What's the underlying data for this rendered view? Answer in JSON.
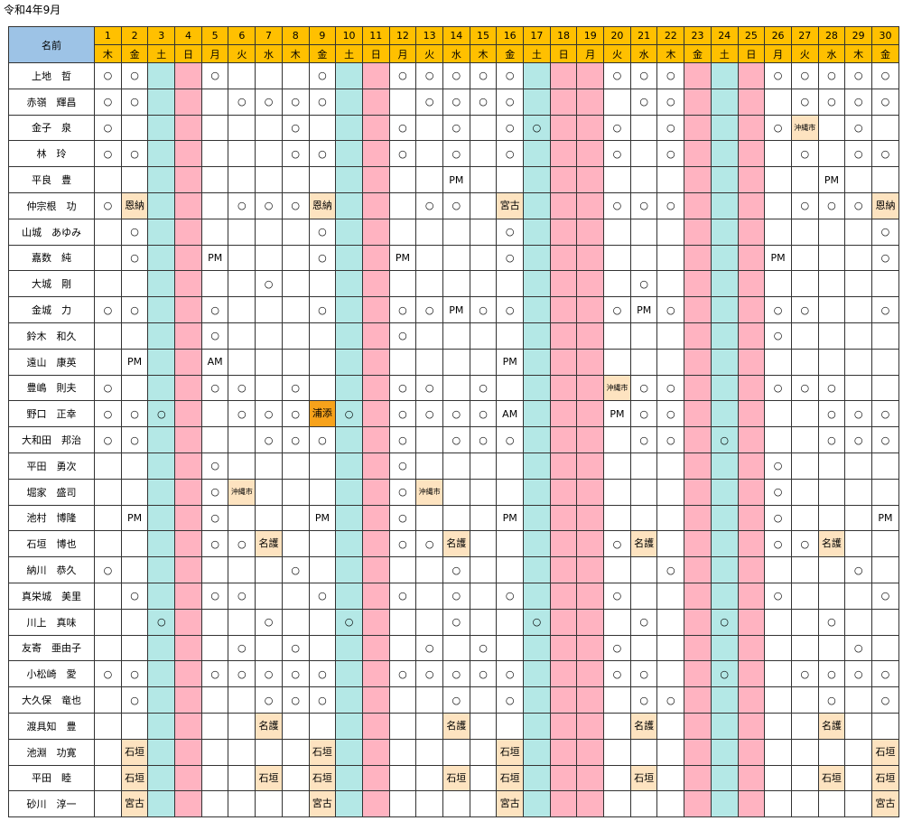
{
  "title": "令和4年9月",
  "header_name": "名前",
  "days": [
    {
      "n": "1",
      "w": "木",
      "t": "w"
    },
    {
      "n": "2",
      "w": "金",
      "t": "w"
    },
    {
      "n": "3",
      "w": "土",
      "t": "sat"
    },
    {
      "n": "4",
      "w": "日",
      "t": "hol"
    },
    {
      "n": "5",
      "w": "月",
      "t": "w"
    },
    {
      "n": "6",
      "w": "火",
      "t": "w"
    },
    {
      "n": "7",
      "w": "水",
      "t": "w"
    },
    {
      "n": "8",
      "w": "木",
      "t": "w"
    },
    {
      "n": "9",
      "w": "金",
      "t": "w"
    },
    {
      "n": "10",
      "w": "土",
      "t": "sat"
    },
    {
      "n": "11",
      "w": "日",
      "t": "hol"
    },
    {
      "n": "12",
      "w": "月",
      "t": "w"
    },
    {
      "n": "13",
      "w": "火",
      "t": "w"
    },
    {
      "n": "14",
      "w": "水",
      "t": "w"
    },
    {
      "n": "15",
      "w": "木",
      "t": "w"
    },
    {
      "n": "16",
      "w": "金",
      "t": "w"
    },
    {
      "n": "17",
      "w": "土",
      "t": "sat"
    },
    {
      "n": "18",
      "w": "日",
      "t": "hol"
    },
    {
      "n": "19",
      "w": "月",
      "t": "hol"
    },
    {
      "n": "20",
      "w": "火",
      "t": "w"
    },
    {
      "n": "21",
      "w": "水",
      "t": "w"
    },
    {
      "n": "22",
      "w": "木",
      "t": "w"
    },
    {
      "n": "23",
      "w": "金",
      "t": "hol"
    },
    {
      "n": "24",
      "w": "土",
      "t": "sat"
    },
    {
      "n": "25",
      "w": "日",
      "t": "hol"
    },
    {
      "n": "26",
      "w": "月",
      "t": "w"
    },
    {
      "n": "27",
      "w": "火",
      "t": "w"
    },
    {
      "n": "28",
      "w": "水",
      "t": "w"
    },
    {
      "n": "29",
      "w": "木",
      "t": "w"
    },
    {
      "n": "30",
      "w": "金",
      "t": "w"
    }
  ],
  "rows": [
    {
      "name": "上地　哲",
      "cells": [
        "○",
        "○",
        "",
        "",
        "○",
        "",
        "",
        "",
        "○",
        "",
        "",
        "○",
        "○",
        "○",
        "○",
        "○",
        "",
        "",
        "",
        "○",
        "○",
        "○",
        "",
        "",
        "",
        "○",
        "○",
        "○",
        "○",
        "○"
      ]
    },
    {
      "name": "赤嶺　輝昌",
      "cells": [
        "○",
        "○",
        "",
        "",
        "",
        "○",
        "○",
        "○",
        "○",
        "",
        "",
        "",
        "○",
        "○",
        "○",
        "○",
        "",
        "",
        "",
        "",
        "○",
        "○",
        "",
        "",
        "",
        "",
        "○",
        "○",
        "○",
        "○"
      ]
    },
    {
      "name": "金子　泉",
      "cells": [
        "○",
        "",
        "",
        "",
        "",
        "",
        "",
        "○",
        "",
        "",
        "",
        "○",
        "",
        "○",
        "",
        "○",
        "○",
        "",
        "",
        "○",
        "",
        "○",
        "",
        "",
        "",
        "○",
        "#沖縄市",
        "",
        "○",
        ""
      ]
    },
    {
      "name": "林　玲",
      "cells": [
        "○",
        "○",
        "",
        "",
        "",
        "",
        "",
        "○",
        "○",
        "",
        "",
        "○",
        "",
        "○",
        "",
        "○",
        "",
        "",
        "",
        "○",
        "",
        "○",
        "",
        "",
        "",
        "",
        "○",
        "",
        "○",
        "○"
      ]
    },
    {
      "name": "平良　豊",
      "cells": [
        "",
        "",
        "",
        "",
        "",
        "",
        "",
        "",
        "",
        "",
        "",
        "",
        "",
        "PM",
        "",
        "",
        "",
        "",
        "",
        "",
        "",
        "",
        "",
        "",
        "",
        "",
        "",
        "PM",
        "",
        ""
      ]
    },
    {
      "name": "仲宗根　功",
      "cells": [
        "○",
        "=恩納",
        "",
        "",
        "",
        "○",
        "○",
        "○",
        "=恩納",
        "",
        "",
        "",
        "○",
        "○",
        "",
        "=宮古",
        "",
        "",
        "",
        "○",
        "○",
        "○",
        "",
        "",
        "",
        "",
        "○",
        "○",
        "○",
        "=恩納"
      ]
    },
    {
      "name": "山城　あゆみ",
      "cells": [
        "",
        "○",
        "",
        "",
        "",
        "",
        "",
        "",
        "○",
        "",
        "",
        "",
        "",
        "",
        "",
        "○",
        "",
        "",
        "",
        "",
        "",
        "",
        "",
        "",
        "",
        "",
        "",
        "",
        "",
        "○"
      ]
    },
    {
      "name": "嘉数　純",
      "cells": [
        "",
        "○",
        "",
        "",
        "PM",
        "",
        "",
        "",
        "○",
        "",
        "",
        "PM",
        "",
        "",
        "",
        "○",
        "",
        "",
        "",
        "",
        "",
        "",
        "",
        "",
        "",
        "PM",
        "",
        "",
        "",
        "○"
      ]
    },
    {
      "name": "大城　剛",
      "cells": [
        "",
        "",
        "",
        "",
        "",
        "",
        "○",
        "",
        "",
        "",
        "",
        "",
        "",
        "",
        "",
        "",
        "",
        "",
        "",
        "",
        "○",
        "",
        "",
        "",
        "",
        "",
        "",
        "",
        "",
        ""
      ]
    },
    {
      "name": "金城　力",
      "cells": [
        "○",
        "○",
        "",
        "",
        "○",
        "",
        "",
        "",
        "○",
        "",
        "",
        "○",
        "○",
        "PM",
        "○",
        "○",
        "",
        "",
        "",
        "○",
        "PM",
        "○",
        "",
        "",
        "",
        "○",
        "○",
        "",
        "",
        "○"
      ]
    },
    {
      "name": "鈴木　和久",
      "cells": [
        "",
        "",
        "",
        "",
        "○",
        "",
        "",
        "",
        "",
        "",
        "",
        "○",
        "",
        "",
        "",
        "",
        "",
        "",
        "",
        "",
        "",
        "",
        "",
        "",
        "",
        "○",
        "",
        "",
        "",
        ""
      ]
    },
    {
      "name": "遠山　康英",
      "cells": [
        "",
        "PM",
        "",
        "",
        "AM",
        "",
        "",
        "",
        "",
        "",
        "",
        "",
        "",
        "",
        "",
        "PM",
        "",
        "",
        "",
        "",
        "",
        "",
        "",
        "",
        "",
        "",
        "",
        "",
        "",
        ""
      ]
    },
    {
      "name": "豊嶋　則夫",
      "cells": [
        "○",
        "",
        "",
        "",
        "○",
        "○",
        "",
        "○",
        "",
        "",
        "",
        "○",
        "○",
        "",
        "○",
        "",
        "",
        "",
        "",
        "#沖縄市",
        "○",
        "○",
        "",
        "",
        "",
        "○",
        "○",
        "○",
        "",
        ""
      ]
    },
    {
      "name": "野口　正幸",
      "cells": [
        "○",
        "○",
        "○",
        "",
        "",
        "○",
        "○",
        "○",
        "!浦添",
        "○",
        "",
        "○",
        "○",
        "○",
        "○",
        "AM",
        "",
        "",
        "",
        "PM",
        "○",
        "○",
        "",
        "",
        "",
        "",
        "",
        "○",
        "○",
        "○"
      ]
    },
    {
      "name": "大和田　邦治",
      "cells": [
        "○",
        "○",
        "",
        "",
        "",
        "",
        "○",
        "○",
        "○",
        "",
        "",
        "○",
        "",
        "○",
        "○",
        "○",
        "",
        "",
        "",
        "",
        "○",
        "○",
        "",
        "○",
        "",
        "",
        "",
        "○",
        "○",
        "○"
      ]
    },
    {
      "name": "平田　勇次",
      "cells": [
        "",
        "",
        "",
        "",
        "○",
        "",
        "",
        "",
        "",
        "",
        "",
        "○",
        "",
        "",
        "",
        "",
        "",
        "",
        "",
        "",
        "",
        "",
        "",
        "",
        "",
        "○",
        "",
        "",
        "",
        ""
      ]
    },
    {
      "name": "堀家　盛司",
      "cells": [
        "",
        "",
        "",
        "",
        "○",
        "#沖縄市",
        "",
        "",
        "",
        "",
        "",
        "○",
        "#沖縄市",
        "",
        "",
        "",
        "",
        "",
        "",
        "",
        "",
        "",
        "",
        "",
        "",
        "○",
        "",
        "",
        "",
        ""
      ]
    },
    {
      "name": "池村　博隆",
      "cells": [
        "",
        "PM",
        "",
        "",
        "○",
        "",
        "",
        "",
        "PM",
        "",
        "",
        "○",
        "",
        "",
        "",
        "PM",
        "",
        "",
        "",
        "",
        "",
        "",
        "",
        "",
        "",
        "○",
        "",
        "",
        "",
        "PM"
      ]
    },
    {
      "name": "石垣　博也",
      "cells": [
        "",
        "",
        "",
        "",
        "○",
        "○",
        "=名護",
        "",
        "",
        "",
        "",
        "○",
        "○",
        "=名護",
        "",
        "",
        "",
        "",
        "",
        "○",
        "=名護",
        "",
        "",
        "",
        "",
        "○",
        "○",
        "=名護",
        "",
        ""
      ]
    },
    {
      "name": "納川　恭久",
      "cells": [
        "○",
        "",
        "",
        "",
        "",
        "",
        "",
        "○",
        "",
        "",
        "",
        "",
        "",
        "○",
        "",
        "",
        "",
        "",
        "",
        "",
        "",
        "○",
        "",
        "",
        "",
        "",
        "",
        "",
        "○",
        ""
      ]
    },
    {
      "name": "真栄城　美里",
      "cells": [
        "",
        "○",
        "",
        "",
        "○",
        "○",
        "",
        "",
        "○",
        "",
        "",
        "○",
        "",
        "○",
        "",
        "○",
        "",
        "",
        "",
        "○",
        "",
        "",
        "",
        "",
        "",
        "○",
        "",
        "",
        "",
        "○"
      ]
    },
    {
      "name": "川上　真味",
      "cells": [
        "",
        "",
        "○",
        "",
        "",
        "",
        "○",
        "",
        "",
        "○",
        "",
        "",
        "",
        "○",
        "",
        "",
        "○",
        "",
        "",
        "",
        "○",
        "",
        "",
        "○",
        "",
        "",
        "",
        "○",
        "",
        ""
      ]
    },
    {
      "name": "友寄　亜由子",
      "cells": [
        "",
        "",
        "",
        "",
        "",
        "○",
        "",
        "○",
        "",
        "",
        "",
        "",
        "○",
        "",
        "○",
        "",
        "",
        "",
        "",
        "○",
        "",
        "",
        "",
        "",
        "",
        "",
        "",
        "",
        "○",
        ""
      ]
    },
    {
      "name": "小松崎　愛",
      "cells": [
        "○",
        "○",
        "",
        "",
        "○",
        "○",
        "○",
        "○",
        "○",
        "",
        "",
        "○",
        "○",
        "○",
        "○",
        "○",
        "",
        "",
        "",
        "○",
        "○",
        "",
        "",
        "○",
        "",
        "",
        "○",
        "○",
        "○",
        "○"
      ]
    },
    {
      "name": "大久保　竜也",
      "cells": [
        "",
        "○",
        "",
        "",
        "",
        "",
        "○",
        "○",
        "○",
        "",
        "",
        "",
        "",
        "○",
        "",
        "○",
        "",
        "",
        "",
        "",
        "○",
        "○",
        "",
        "",
        "",
        "",
        "",
        "○",
        "",
        "○"
      ]
    },
    {
      "name": "渡具知　豊",
      "cells": [
        "",
        "",
        "",
        "",
        "",
        "",
        "=名護",
        "",
        "",
        "",
        "",
        "",
        "",
        "=名護",
        "",
        "",
        "",
        "",
        "",
        "",
        "=名護",
        "",
        "",
        "",
        "",
        "",
        "",
        "=名護",
        "",
        ""
      ]
    },
    {
      "name": "池淵　功寛",
      "cells": [
        "",
        "=石垣",
        "",
        "",
        "",
        "",
        "",
        "",
        "=石垣",
        "",
        "",
        "",
        "",
        "",
        "",
        "=石垣",
        "",
        "",
        "",
        "",
        "",
        "",
        "",
        "",
        "",
        "",
        "",
        "",
        "",
        "=石垣"
      ]
    },
    {
      "name": "平田　睦",
      "cells": [
        "",
        "=石垣",
        "",
        "",
        "",
        "",
        "=石垣",
        "",
        "=石垣",
        "",
        "",
        "",
        "",
        "=石垣",
        "",
        "=石垣",
        "",
        "",
        "",
        "",
        "=石垣",
        "",
        "",
        "",
        "",
        "",
        "",
        "=石垣",
        "",
        "=石垣"
      ]
    },
    {
      "name": "砂川　淳一",
      "cells": [
        "",
        "=宮古",
        "",
        "",
        "",
        "",
        "",
        "",
        "=宮古",
        "",
        "",
        "",
        "",
        "",
        "",
        "=宮古",
        "",
        "",
        "",
        "",
        "",
        "",
        "",
        "",
        "",
        "",
        "",
        "",
        "",
        "=宮古"
      ]
    }
  ],
  "colors": {
    "header_day": "#ffc000",
    "header_name": "#9dc3e6",
    "saturday": "#b4e8e6",
    "holiday": "#ffb3c1",
    "location_label": "#fde3c0",
    "location_label_strong": "#f7a21b"
  }
}
